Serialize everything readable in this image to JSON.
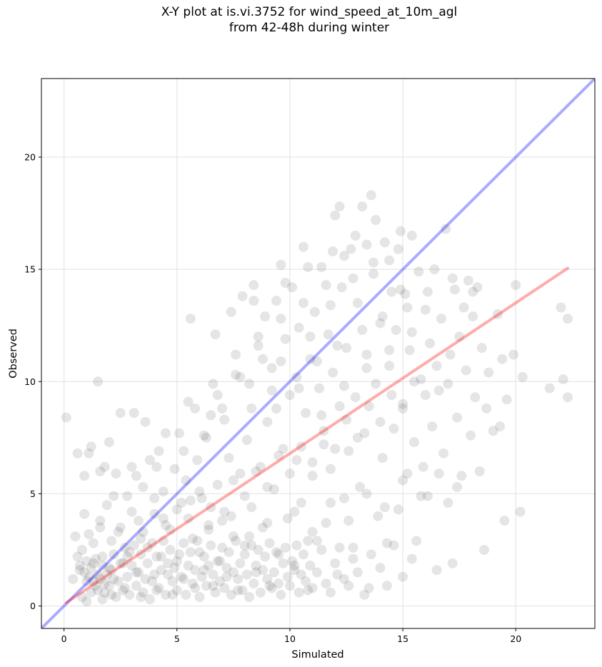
{
  "title": {
    "line1": "X-Y plot at is.vi.3752 for wind_speed_at_10m_agl",
    "line2": "from 42-48h during winter"
  },
  "chart_data": {
    "type": "scatter",
    "title": "X-Y plot at is.vi.3752 for wind_speed_at_10m_agl from 42-48h during winter",
    "xlabel": "Simulated",
    "ylabel": "Observed",
    "xlim": [
      -1,
      23.5
    ],
    "ylim": [
      -1,
      23.5
    ],
    "xticks": [
      0,
      5,
      10,
      15,
      20
    ],
    "yticks": [
      0,
      5,
      10,
      15,
      20
    ],
    "grid": true,
    "lines": [
      {
        "role": "one-to-one",
        "color": "#0000ff",
        "x": [
          -1,
          23.5
        ],
        "y": [
          -1,
          23.5
        ]
      },
      {
        "role": "fit",
        "color": "#ff0000",
        "x": [
          0.1,
          22.3
        ],
        "y": [
          0.15,
          15.05
        ]
      }
    ],
    "points": [
      [
        0.1,
        8.4
      ],
      [
        0.4,
        1.2
      ],
      [
        0.5,
        3.1
      ],
      [
        0.6,
        6.8
      ],
      [
        0.6,
        2.2
      ],
      [
        0.7,
        1.6
      ],
      [
        0.8,
        0.4
      ],
      [
        0.8,
        2.5
      ],
      [
        0.9,
        4.1
      ],
      [
        0.9,
        5.8
      ],
      [
        1.0,
        1.1
      ],
      [
        1.0,
        0.2
      ],
      [
        1.1,
        6.8
      ],
      [
        1.1,
        3.2
      ],
      [
        1.2,
        7.1
      ],
      [
        1.2,
        0.6
      ],
      [
        1.3,
        1.9
      ],
      [
        1.3,
        2.8
      ],
      [
        1.4,
        0.9
      ],
      [
        1.5,
        10.0
      ],
      [
        1.5,
        1.4
      ],
      [
        1.6,
        3.5
      ],
      [
        1.6,
        6.0
      ],
      [
        1.7,
        0.3
      ],
      [
        1.7,
        2.2
      ],
      [
        1.8,
        6.2
      ],
      [
        1.8,
        1.0
      ],
      [
        1.9,
        4.5
      ],
      [
        2.0,
        7.3
      ],
      [
        2.0,
        1.7
      ],
      [
        2.1,
        0.5
      ],
      [
        2.1,
        2.9
      ],
      [
        2.2,
        1.2
      ],
      [
        2.3,
        5.9
      ],
      [
        2.4,
        3.3
      ],
      [
        2.5,
        8.6
      ],
      [
        2.6,
        1.9
      ],
      [
        2.7,
        0.8
      ],
      [
        2.8,
        4.9
      ],
      [
        2.9,
        2.4
      ],
      [
        3.0,
        6.2
      ],
      [
        3.1,
        8.6
      ],
      [
        3.2,
        1.5
      ],
      [
        3.3,
        3.8
      ],
      [
        3.4,
        0.4
      ],
      [
        3.5,
        5.3
      ],
      [
        3.6,
        8.2
      ],
      [
        3.7,
        2.6
      ],
      [
        3.8,
        6.5
      ],
      [
        3.9,
        1.1
      ],
      [
        4.0,
        4.1
      ],
      [
        4.1,
        0.7
      ],
      [
        4.2,
        6.9
      ],
      [
        4.3,
        2.2
      ],
      [
        4.4,
        5.1
      ],
      [
        4.5,
        7.7
      ],
      [
        4.6,
        1.4
      ],
      [
        4.7,
        3.4
      ],
      [
        4.8,
        0.5
      ],
      [
        4.9,
        6.1
      ],
      [
        5.0,
        2.0
      ],
      [
        5.1,
        7.7
      ],
      [
        5.2,
        4.6
      ],
      [
        5.3,
        1.2
      ],
      [
        5.4,
        5.6
      ],
      [
        5.5,
        9.1
      ],
      [
        5.6,
        12.8
      ],
      [
        5.7,
        3.0
      ],
      [
        5.8,
        0.8
      ],
      [
        5.9,
        6.5
      ],
      [
        6.0,
        2.4
      ],
      [
        6.1,
        4.8
      ],
      [
        6.2,
        1.6
      ],
      [
        6.3,
        7.5
      ],
      [
        6.4,
        3.6
      ],
      [
        6.5,
        8.5
      ],
      [
        6.6,
        0.9
      ],
      [
        6.7,
        12.1
      ],
      [
        6.8,
        5.4
      ],
      [
        6.9,
        2.0
      ],
      [
        7.0,
        8.8
      ],
      [
        7.1,
        4.2
      ],
      [
        7.2,
        1.3
      ],
      [
        7.3,
        6.6
      ],
      [
        7.4,
        13.1
      ],
      [
        7.5,
        3.1
      ],
      [
        7.6,
        10.3
      ],
      [
        7.7,
        0.7
      ],
      [
        7.8,
        5.9
      ],
      [
        7.9,
        13.8
      ],
      [
        8.0,
        2.7
      ],
      [
        8.1,
        7.4
      ],
      [
        8.2,
        9.9
      ],
      [
        8.3,
        4.4
      ],
      [
        8.4,
        14.3
      ],
      [
        8.5,
        1.5
      ],
      [
        8.6,
        11.6
      ],
      [
        8.7,
        6.2
      ],
      [
        8.8,
        3.5
      ],
      [
        8.9,
        12.9
      ],
      [
        9.0,
        8.2
      ],
      [
        9.1,
        0.9
      ],
      [
        9.2,
        10.6
      ],
      [
        9.3,
        5.2
      ],
      [
        9.4,
        13.6
      ],
      [
        9.5,
        2.3
      ],
      [
        9.6,
        15.2
      ],
      [
        9.7,
        7.0
      ],
      [
        9.8,
        11.9
      ],
      [
        9.9,
        3.9
      ],
      [
        10.0,
        9.4
      ],
      [
        10.1,
        14.2
      ],
      [
        10.2,
        1.8
      ],
      [
        10.3,
        6.5
      ],
      [
        10.4,
        12.4
      ],
      [
        10.5,
        4.6
      ],
      [
        10.6,
        16.0
      ],
      [
        10.7,
        8.6
      ],
      [
        10.8,
        0.7
      ],
      [
        10.9,
        11.0
      ],
      [
        11.0,
        5.8
      ],
      [
        11.1,
        13.1
      ],
      [
        11.2,
        2.9
      ],
      [
        11.3,
        9.7
      ],
      [
        11.4,
        15.1
      ],
      [
        11.5,
        7.2
      ],
      [
        11.6,
        3.7
      ],
      [
        11.7,
        12.1
      ],
      [
        11.8,
        6.1
      ],
      [
        11.9,
        10.4
      ],
      [
        12.0,
        17.4
      ],
      [
        12.1,
        1.4
      ],
      [
        12.2,
        8.9
      ],
      [
        12.3,
        14.2
      ],
      [
        12.4,
        4.8
      ],
      [
        12.5,
        11.5
      ],
      [
        12.6,
        6.9
      ],
      [
        12.7,
        15.9
      ],
      [
        12.8,
        2.6
      ],
      [
        12.9,
        9.3
      ],
      [
        13.0,
        13.5
      ],
      [
        13.1,
        5.3
      ],
      [
        13.2,
        17.8
      ],
      [
        13.3,
        7.7
      ],
      [
        13.4,
        11.2
      ],
      [
        13.5,
        0.8
      ],
      [
        13.6,
        18.3
      ],
      [
        13.7,
        14.8
      ],
      [
        13.8,
        9.9
      ],
      [
        13.9,
        4.0
      ],
      [
        14.0,
        12.6
      ],
      [
        14.1,
        6.6
      ],
      [
        14.2,
        16.2
      ],
      [
        14.3,
        2.8
      ],
      [
        14.4,
        10.7
      ],
      [
        14.5,
        14.0
      ],
      [
        14.6,
        7.9
      ],
      [
        14.7,
        12.3
      ],
      [
        14.8,
        4.3
      ],
      [
        14.9,
        16.7
      ],
      [
        15.0,
        9.0
      ],
      [
        15.1,
        13.9
      ],
      [
        15.2,
        5.9
      ],
      [
        15.3,
        11.4
      ],
      [
        15.4,
        16.5
      ],
      [
        15.5,
        7.3
      ],
      [
        15.6,
        2.9
      ],
      [
        15.7,
        14.9
      ],
      [
        15.8,
        10.1
      ],
      [
        15.9,
        6.2
      ],
      [
        16.0,
        13.2
      ],
      [
        16.1,
        4.9
      ],
      [
        16.2,
        11.7
      ],
      [
        16.3,
        8.0
      ],
      [
        16.4,
        15.0
      ],
      [
        16.5,
        1.6
      ],
      [
        16.6,
        9.6
      ],
      [
        16.7,
        12.8
      ],
      [
        16.8,
        6.8
      ],
      [
        16.9,
        16.8
      ],
      [
        17.0,
        4.6
      ],
      [
        17.1,
        11.2
      ],
      [
        17.2,
        1.9
      ],
      [
        17.3,
        14.1
      ],
      [
        17.4,
        8.4
      ],
      [
        17.5,
        12.0
      ],
      [
        17.6,
        5.8
      ],
      [
        17.7,
        13.3
      ],
      [
        17.8,
        10.5
      ],
      [
        17.9,
        14.5
      ],
      [
        18.0,
        7.6
      ],
      [
        18.1,
        12.9
      ],
      [
        18.2,
        9.3
      ],
      [
        18.3,
        14.2
      ],
      [
        18.4,
        6.0
      ],
      [
        18.5,
        11.5
      ],
      [
        18.6,
        2.5
      ],
      [
        18.7,
        8.8
      ],
      [
        18.8,
        10.4
      ],
      [
        19.0,
        7.8
      ],
      [
        19.2,
        13.0
      ],
      [
        19.3,
        8.0
      ],
      [
        19.4,
        11.0
      ],
      [
        19.5,
        3.8
      ],
      [
        19.6,
        9.2
      ],
      [
        19.9,
        11.2
      ],
      [
        20.0,
        14.3
      ],
      [
        20.2,
        4.2
      ],
      [
        20.3,
        10.2
      ],
      [
        21.5,
        9.7
      ],
      [
        22.0,
        13.3
      ],
      [
        22.1,
        10.1
      ],
      [
        22.3,
        9.3
      ],
      [
        22.3,
        12.8
      ],
      [
        0.7,
        1.8
      ],
      [
        0.9,
        1.5
      ],
      [
        1.0,
        2.0
      ],
      [
        1.1,
        1.3
      ],
      [
        1.2,
        1.7
      ],
      [
        1.3,
        1.1
      ],
      [
        1.4,
        2.1
      ],
      [
        1.5,
        0.7
      ],
      [
        1.6,
        1.2
      ],
      [
        1.7,
        1.8
      ],
      [
        1.8,
        0.6
      ],
      [
        1.9,
        1.4
      ],
      [
        2.0,
        0.9
      ],
      [
        2.1,
        1.6
      ],
      [
        2.2,
        2.3
      ],
      [
        2.3,
        0.4
      ],
      [
        2.4,
        1.1
      ],
      [
        2.5,
        1.9
      ],
      [
        2.6,
        0.7
      ],
      [
        2.7,
        2.6
      ],
      [
        2.8,
        1.3
      ],
      [
        2.9,
        0.5
      ],
      [
        3.0,
        1.8
      ],
      [
        3.1,
        2.7
      ],
      [
        3.2,
        0.9
      ],
      [
        3.3,
        1.5
      ],
      [
        3.4,
        2.3
      ],
      [
        3.5,
        0.6
      ],
      [
        3.6,
        1.2
      ],
      [
        3.7,
        1.9
      ],
      [
        3.8,
        0.3
      ],
      [
        3.9,
        2.8
      ],
      [
        4.0,
        1.4
      ],
      [
        4.1,
        2.2
      ],
      [
        4.2,
        0.8
      ],
      [
        4.3,
        1.6
      ],
      [
        4.4,
        2.9
      ],
      [
        4.5,
        0.5
      ],
      [
        4.6,
        1.9
      ],
      [
        4.7,
        2.5
      ],
      [
        4.8,
        1.1
      ],
      [
        4.9,
        1.7
      ],
      [
        5.0,
        0.7
      ],
      [
        5.1,
        2.3
      ],
      [
        5.2,
        1.3
      ],
      [
        5.3,
        2.8
      ],
      [
        5.4,
        0.5
      ],
      [
        5.5,
        1.8
      ],
      [
        5.6,
        2.4
      ],
      [
        5.7,
        1.0
      ],
      [
        5.8,
        1.6
      ],
      [
        5.9,
        2.9
      ],
      [
        6.0,
        0.4
      ],
      [
        6.1,
        1.3
      ],
      [
        6.2,
        2.2
      ],
      [
        6.3,
        0.9
      ],
      [
        6.4,
        1.8
      ],
      [
        6.5,
        2.7
      ],
      [
        6.6,
        1.4
      ],
      [
        6.7,
        0.6
      ],
      [
        6.8,
        2.0
      ],
      [
        6.9,
        1.1
      ],
      [
        7.0,
        2.6
      ],
      [
        7.1,
        0.8
      ],
      [
        7.2,
        1.7
      ],
      [
        7.3,
        2.4
      ],
      [
        7.4,
        0.5
      ],
      [
        7.5,
        1.5
      ],
      [
        7.6,
        2.9
      ],
      [
        7.7,
        1.2
      ],
      [
        7.8,
        1.9
      ],
      [
        7.9,
        0.7
      ],
      [
        8.0,
        2.3
      ],
      [
        8.1,
        1.4
      ],
      [
        8.2,
        0.4
      ],
      [
        8.3,
        2.7
      ],
      [
        8.4,
        1.0
      ],
      [
        8.5,
        1.8
      ],
      [
        8.6,
        2.5
      ],
      [
        8.7,
        0.6
      ],
      [
        8.8,
        1.6
      ],
      [
        8.9,
        2.2
      ],
      [
        9.0,
        1.2
      ],
      [
        9.1,
        2.8
      ],
      [
        9.2,
        0.8
      ],
      [
        9.3,
        1.5
      ],
      [
        9.4,
        2.4
      ],
      [
        9.5,
        1.0
      ],
      [
        9.6,
        0.5
      ],
      [
        9.7,
        1.9
      ],
      [
        9.8,
        2.6
      ],
      [
        9.9,
        1.3
      ],
      [
        10.0,
        0.9
      ],
      [
        10.1,
        2.0
      ],
      [
        10.2,
        1.6
      ],
      [
        10.3,
        2.7
      ],
      [
        10.4,
        0.6
      ],
      [
        10.5,
        1.4
      ],
      [
        10.6,
        2.3
      ],
      [
        10.7,
        1.1
      ],
      [
        10.8,
        2.9
      ],
      [
        10.9,
        1.8
      ],
      [
        11.0,
        0.8
      ],
      [
        11.2,
        1.5
      ],
      [
        11.4,
        2.5
      ],
      [
        11.6,
        1.0
      ],
      [
        11.8,
        0.6
      ],
      [
        12.0,
        1.9
      ],
      [
        12.2,
        2.6
      ],
      [
        12.4,
        1.2
      ],
      [
        12.6,
        0.9
      ],
      [
        12.8,
        2.1
      ],
      [
        13.0,
        1.5
      ],
      [
        13.3,
        0.5
      ],
      [
        13.6,
        2.3
      ],
      [
        14.0,
        1.7
      ],
      [
        14.3,
        0.9
      ],
      [
        14.6,
        2.7
      ],
      [
        15.0,
        1.3
      ],
      [
        15.4,
        2.1
      ],
      [
        2.5,
        3.5
      ],
      [
        3.0,
        4.2
      ],
      [
        3.5,
        3.3
      ],
      [
        4.0,
        4.8
      ],
      [
        4.5,
        3.6
      ],
      [
        5.0,
        4.3
      ],
      [
        5.5,
        3.9
      ],
      [
        6.0,
        5.1
      ],
      [
        6.5,
        4.4
      ],
      [
        7.0,
        3.8
      ],
      [
        7.5,
        5.6
      ],
      [
        8.0,
        4.9
      ],
      [
        8.5,
        6.0
      ],
      [
        9.0,
        5.3
      ],
      [
        9.5,
        6.7
      ],
      [
        10.0,
        5.9
      ],
      [
        10.5,
        7.1
      ],
      [
        11.0,
        6.4
      ],
      [
        11.5,
        7.8
      ],
      [
        12.0,
        7.0
      ],
      [
        12.5,
        8.3
      ],
      [
        13.0,
        7.5
      ],
      [
        13.5,
        8.9
      ],
      [
        14.0,
        8.2
      ],
      [
        14.5,
        9.4
      ],
      [
        15.0,
        8.8
      ],
      [
        15.5,
        10.0
      ],
      [
        16.0,
        9.4
      ],
      [
        16.5,
        10.7
      ],
      [
        17.0,
        9.9
      ],
      [
        3.2,
        5.8
      ],
      [
        4.1,
        6.2
      ],
      [
        5.3,
        6.9
      ],
      [
        6.2,
        7.6
      ],
      [
        7.1,
        8.3
      ],
      [
        8.3,
        8.8
      ],
      [
        9.2,
        9.6
      ],
      [
        10.3,
        10.2
      ],
      [
        11.2,
        10.9
      ],
      [
        12.1,
        11.6
      ],
      [
        13.2,
        12.3
      ],
      [
        14.1,
        12.9
      ],
      [
        15.2,
        13.3
      ],
      [
        16.1,
        14.0
      ],
      [
        17.2,
        14.6
      ],
      [
        18.1,
        14.0
      ],
      [
        8.6,
        12.0
      ],
      [
        9.6,
        12.8
      ],
      [
        10.6,
        13.5
      ],
      [
        11.6,
        14.3
      ],
      [
        12.4,
        15.6
      ],
      [
        13.4,
        16.1
      ],
      [
        14.4,
        15.4
      ],
      [
        12.9,
        16.5
      ],
      [
        11.9,
        15.8
      ],
      [
        10.8,
        15.1
      ],
      [
        9.8,
        14.4
      ],
      [
        13.8,
        17.2
      ],
      [
        12.2,
        17.8
      ],
      [
        14.8,
        15.9
      ],
      [
        6.8,
        9.4
      ],
      [
        7.8,
        10.2
      ],
      [
        8.8,
        11.0
      ],
      [
        9.4,
        8.8
      ],
      [
        10.4,
        9.7
      ],
      [
        11.4,
        8.5
      ],
      [
        12.4,
        9.8
      ],
      [
        13.4,
        10.6
      ],
      [
        14.4,
        11.4
      ],
      [
        15.4,
        12.2
      ],
      [
        5.8,
        8.8
      ],
      [
        6.6,
        9.9
      ],
      [
        7.6,
        11.2
      ],
      [
        8.4,
        13.6
      ],
      [
        9.6,
        10.9
      ],
      [
        10.9,
        12.0
      ],
      [
        11.8,
        13.4
      ],
      [
        12.8,
        14.6
      ],
      [
        13.7,
        15.3
      ],
      [
        14.9,
        14.1
      ],
      [
        1.6,
        3.8
      ],
      [
        2.2,
        4.9
      ],
      [
        2.8,
        2.2
      ],
      [
        3.4,
        3.0
      ],
      [
        4.4,
        3.9
      ],
      [
        5.6,
        4.7
      ],
      [
        6.4,
        3.4
      ],
      [
        7.4,
        4.0
      ],
      [
        8.2,
        3.1
      ],
      [
        9.0,
        3.7
      ],
      [
        10.2,
        4.2
      ],
      [
        11.0,
        3.3
      ],
      [
        11.8,
        4.6
      ],
      [
        12.6,
        3.8
      ],
      [
        13.4,
        5.0
      ],
      [
        14.2,
        4.4
      ],
      [
        15.0,
        5.6
      ],
      [
        15.8,
        4.9
      ],
      [
        16.6,
        5.9
      ],
      [
        17.4,
        5.3
      ]
    ]
  }
}
